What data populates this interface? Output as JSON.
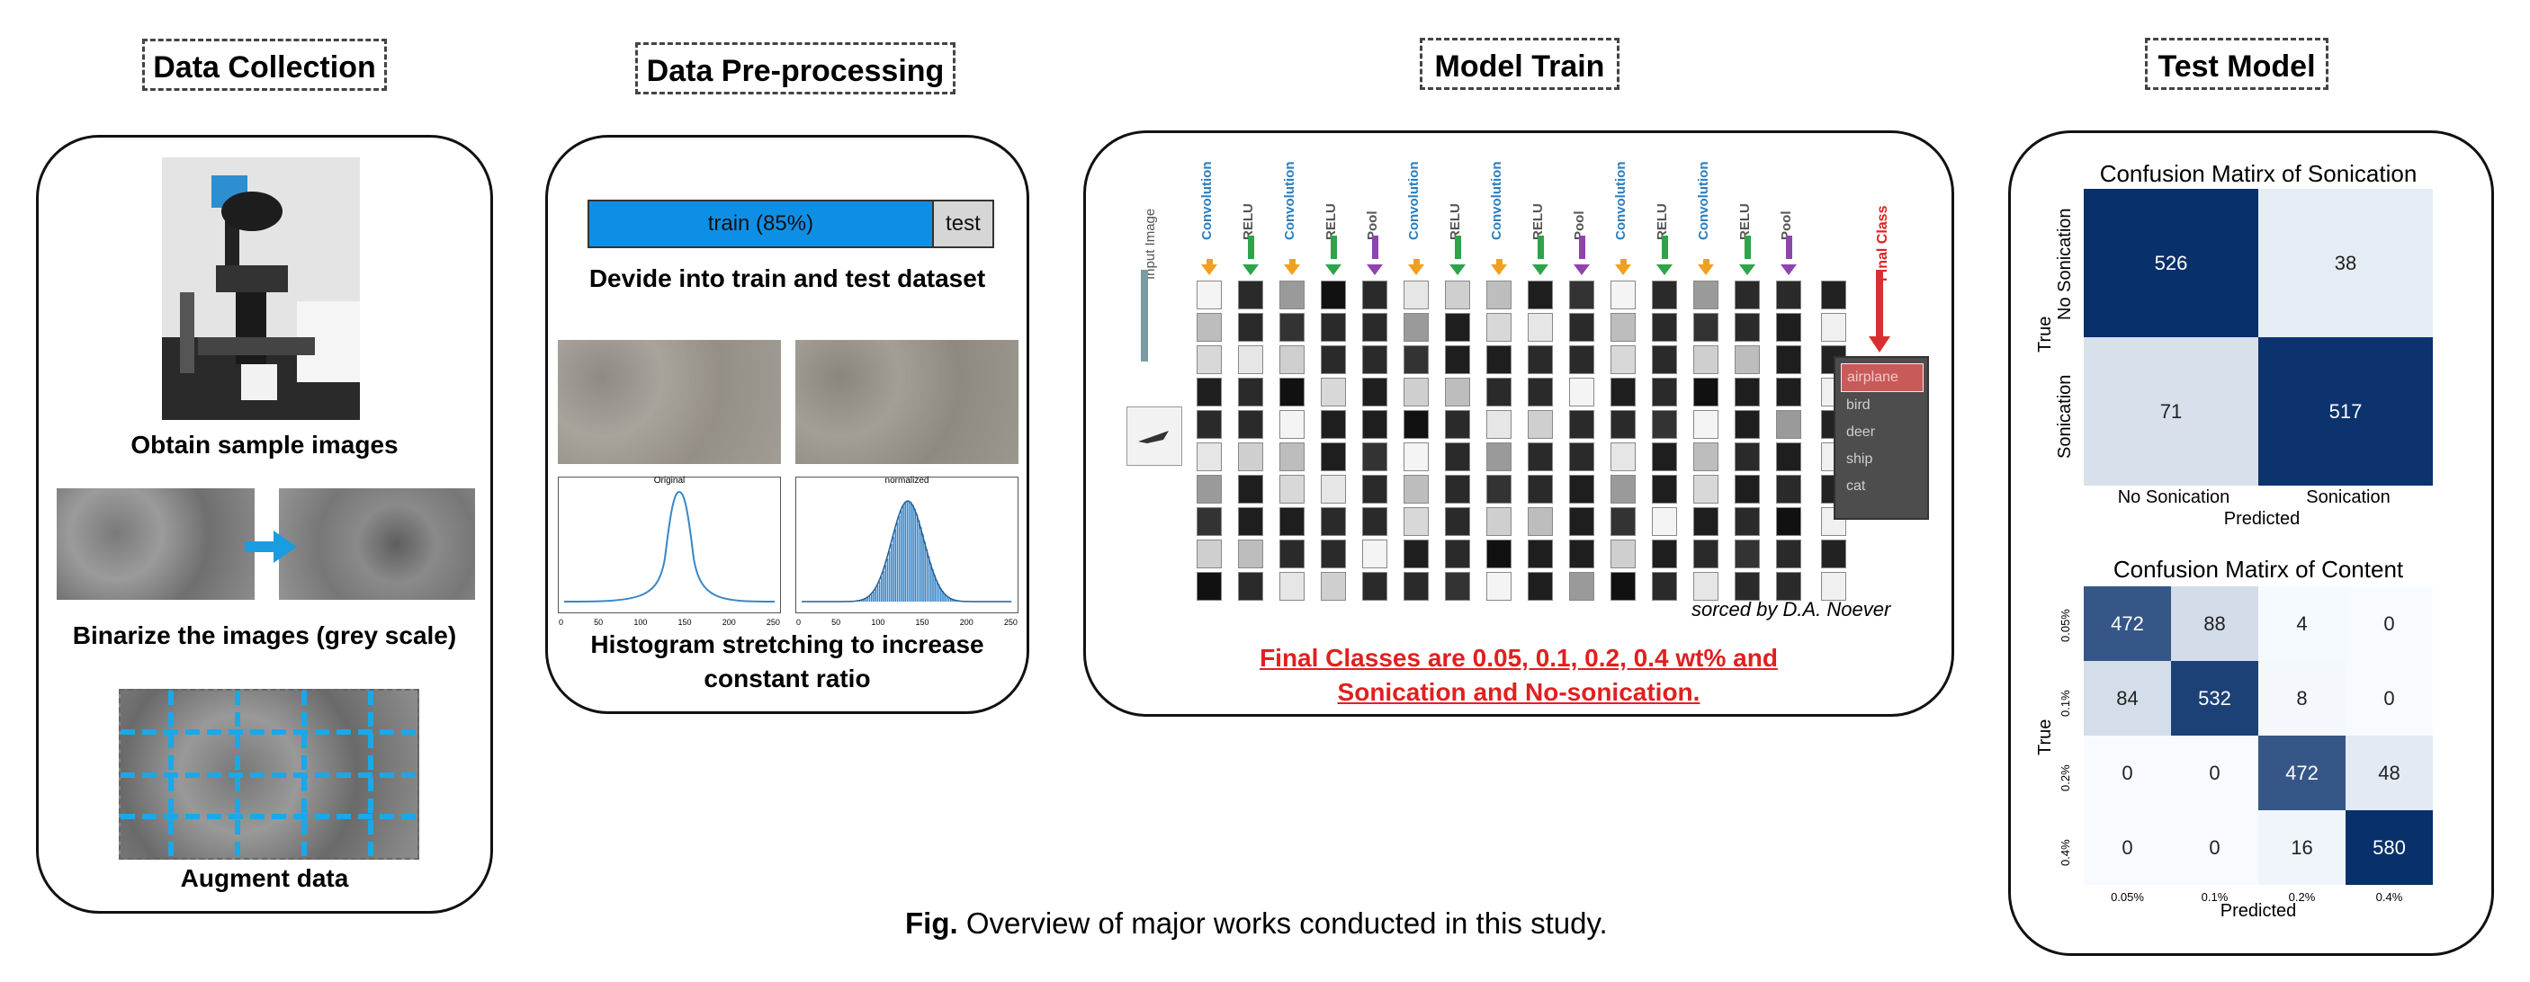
{
  "sections": {
    "collection": "Data Collection",
    "preprocessing": "Data Pre-processing",
    "train": "Model Train",
    "test": "Test Model"
  },
  "collection": {
    "obtain": "Obtain sample images",
    "binarize": "Binarize the images (grey scale)",
    "augment": "Augment data"
  },
  "preprocessing": {
    "train_label": "train (85%)",
    "test_label": "test",
    "train_fraction": 0.85,
    "divide": "Devide into train and test dataset",
    "hist_original": "Original",
    "hist_normalized": "normalized",
    "hist_ticks": [
      "0",
      "50",
      "100",
      "150",
      "200",
      "250"
    ],
    "histogram": "Histogram stretching to increase constant ratio"
  },
  "model": {
    "input_image": "Input Image",
    "layers": [
      "Convolution",
      "RELU",
      "Convolution",
      "RELU",
      "Pool",
      "Convolution",
      "RELU",
      "Convolution",
      "RELU",
      "Pool",
      "Convolution",
      "RELU",
      "Convolution",
      "RELU",
      "Pool"
    ],
    "final_class": "Final Class",
    "classes": [
      "airplane",
      "bird",
      "deer",
      "ship",
      "cat"
    ],
    "credit": "sorced by D.A. Noever",
    "final_line1": "Final Classes are 0.05, 0.1, 0.2, 0.4 wt% and",
    "final_line2": "Sonication and No-sonication.",
    "colors": {
      "conv": "#f0a020",
      "relu": "#2ea34a",
      "pool": "#8e44ad",
      "label": "#2a7fc1",
      "final": "#e02020"
    }
  },
  "confusion_sonication": {
    "title": "Confusion Matirx of Sonication",
    "xlabel": "Predicted",
    "ylabel": "True",
    "labels": [
      "No Sonication",
      "Sonication"
    ],
    "matrix": [
      [
        526,
        38
      ],
      [
        71,
        517
      ]
    ]
  },
  "confusion_content": {
    "title": "Confusion Matirx of Content",
    "xlabel": "Predicted",
    "ylabel": "True",
    "labels": [
      "0.05%",
      "0.1%",
      "0.2%",
      "0.4%"
    ],
    "matrix": [
      [
        472,
        88,
        4,
        0
      ],
      [
        84,
        532,
        8,
        0
      ],
      [
        0,
        0,
        472,
        48
      ],
      [
        0,
        0,
        16,
        580
      ]
    ]
  },
  "caption": {
    "fig": "Fig.",
    "text": " Overview of major works conducted in this study."
  }
}
